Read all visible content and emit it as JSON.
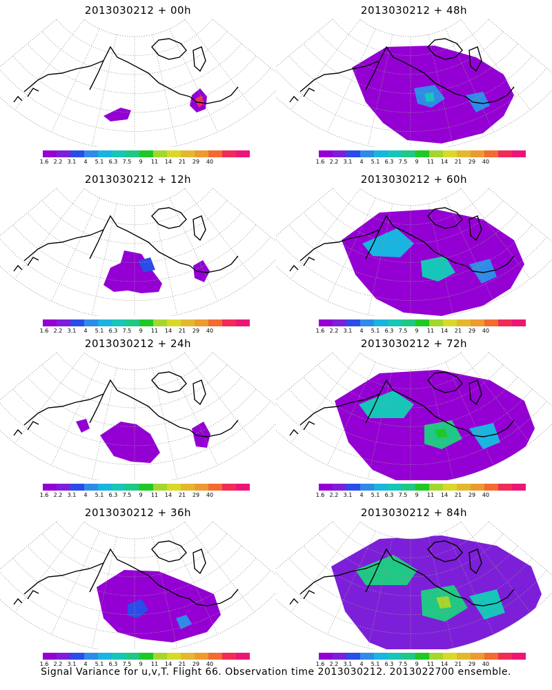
{
  "figure_caption": "Signal Variance for u,v,T. Flight 66. Observation time 2013030212. 2013022700 ensemble.",
  "colorbar": {
    "labels": [
      "1.6",
      "2.2",
      "3.1",
      "4",
      "5.1",
      "6.3",
      "7.5",
      "9",
      "11",
      "14",
      "21",
      "29",
      "40"
    ],
    "colors": [
      "#9400d3",
      "#7d1fd8",
      "#2a4ce8",
      "#2f8be8",
      "#19b4e0",
      "#16c6b8",
      "#21c784",
      "#1fc826",
      "#a4d62e",
      "#d8d929",
      "#e3b82e",
      "#ed9a30",
      "#f26b2f",
      "#f02c57",
      "#ec1675"
    ]
  },
  "panels": [
    {
      "title": "2013030212 + 00h",
      "level": 0
    },
    {
      "title": "2013030212 + 48h",
      "level": 4
    },
    {
      "title": "2013030212 + 12h",
      "level": 1
    },
    {
      "title": "2013030212 + 60h",
      "level": 5
    },
    {
      "title": "2013030212 + 24h",
      "level": 2
    },
    {
      "title": "2013030212 + 72h",
      "level": 6
    },
    {
      "title": "2013030212 + 36h",
      "level": 3
    },
    {
      "title": "2013030212 + 84h",
      "level": 7
    }
  ]
}
